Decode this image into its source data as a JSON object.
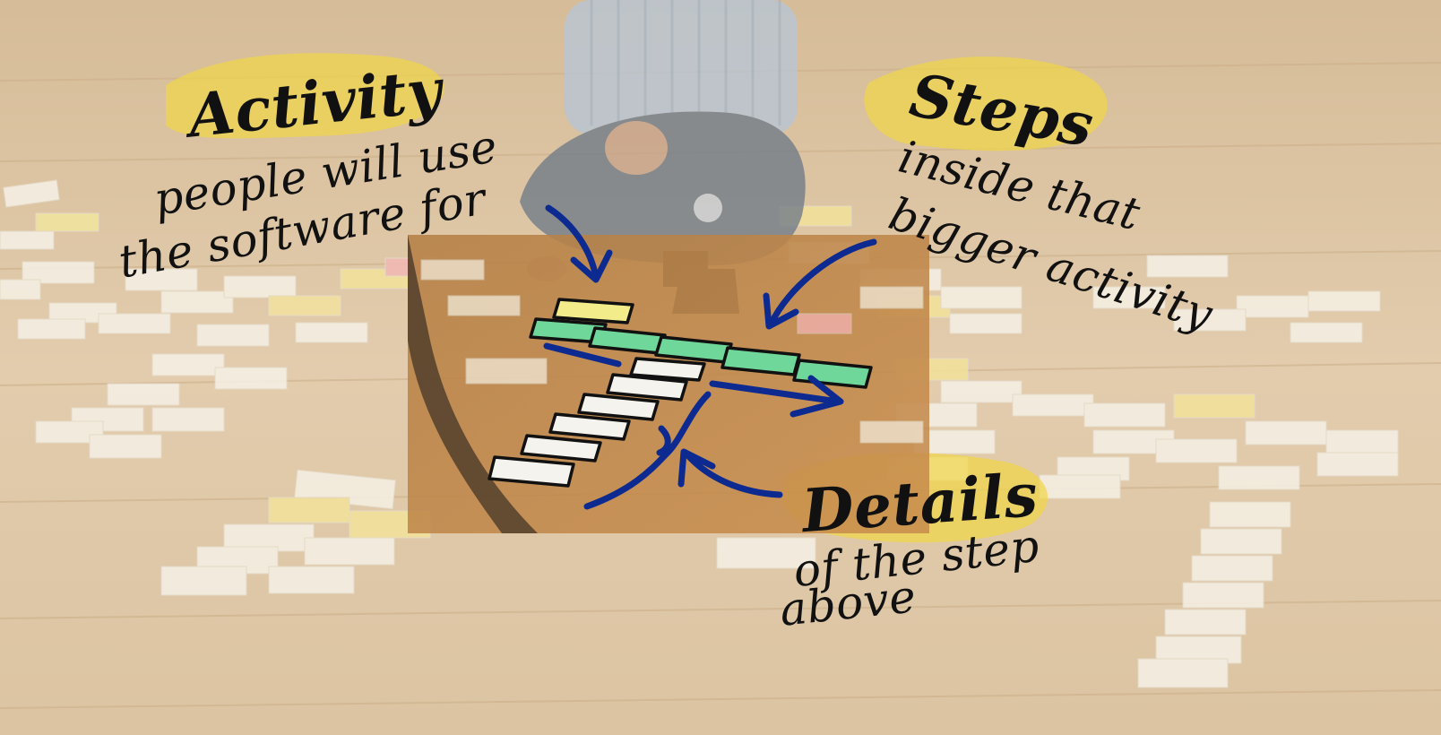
{
  "annotations": {
    "activity": {
      "title": "Activity",
      "line1": "people will use",
      "line2": "the software for"
    },
    "steps": {
      "title": "Steps",
      "line1": "inside that",
      "line2": "bigger activity"
    },
    "details": {
      "title": "Details",
      "line1": "of the step",
      "line2": "above"
    }
  },
  "colors": {
    "floor": "#dcc6a6",
    "highlight": "#f1dd54",
    "arrow": "#0c2a8f",
    "activity_card": "#f3ec8a",
    "step_card": "#6fd79a",
    "detail_card": "#f5f3ee"
  }
}
